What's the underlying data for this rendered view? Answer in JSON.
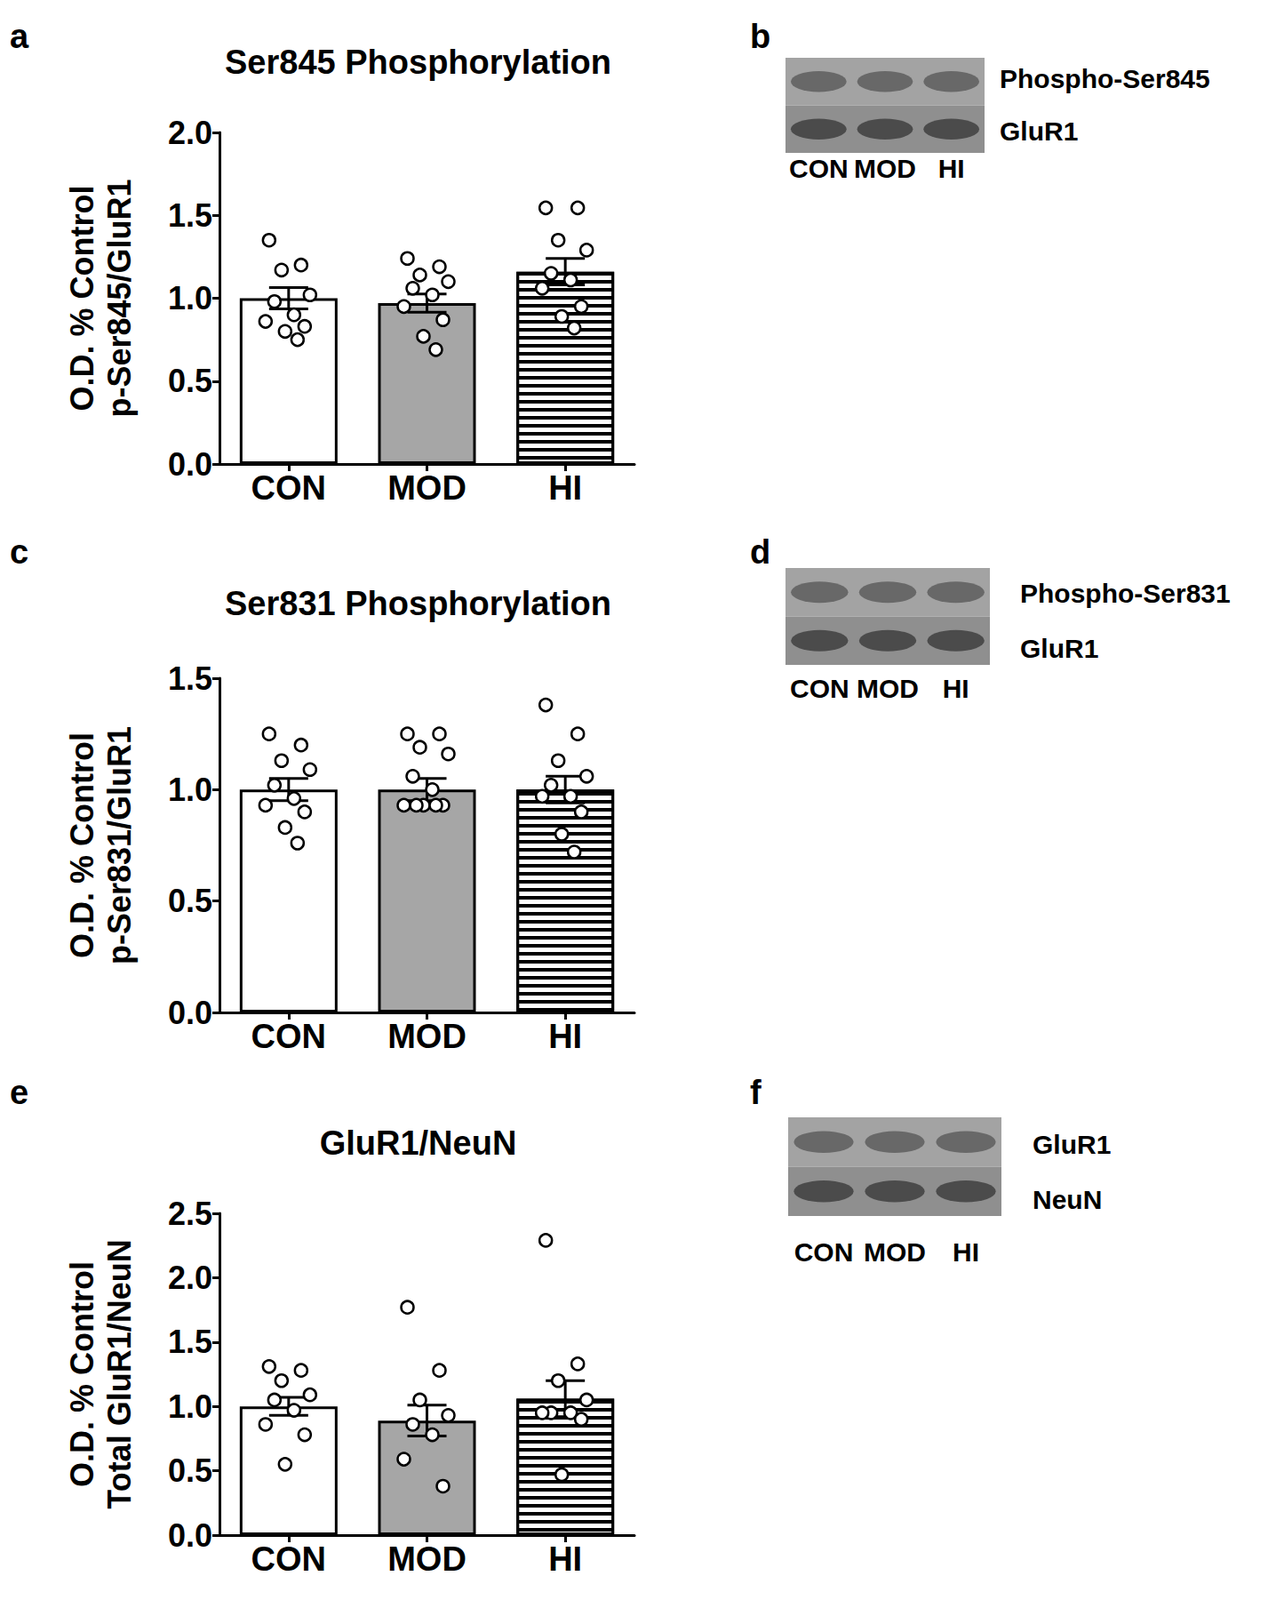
{
  "chart_data": [
    {
      "type": "bar",
      "panel": "a",
      "title": "Ser845 Phosphorylation",
      "y_label": [
        "O.D. % Control",
        "p-Ser845/GluR1"
      ],
      "categories": [
        "CON",
        "MOD",
        "HI"
      ],
      "values": [
        1.0,
        0.97,
        1.16
      ],
      "errors": [
        0.065,
        0.055,
        0.08
      ],
      "points": [
        [
          1.35,
          1.2,
          1.17,
          1.02,
          0.98,
          0.9,
          0.86,
          0.83,
          0.8,
          0.75
        ],
        [
          1.24,
          1.19,
          1.14,
          1.1,
          1.06,
          1.02,
          0.95,
          0.87,
          0.77,
          0.69
        ],
        [
          1.545,
          1.545,
          1.35,
          1.29,
          1.15,
          1.11,
          1.06,
          0.95,
          0.89,
          0.82
        ]
      ],
      "colors": [
        "#ffffff",
        "#a6a6a6",
        "#ffffff"
      ],
      "ylim": [
        0,
        2
      ],
      "yticks": [
        {
          "value": 0,
          "label": "0.0"
        },
        {
          "value": 0.5,
          "label": "0.5"
        },
        {
          "value": 1,
          "label": "1.0"
        },
        {
          "value": 1.5,
          "label": "1.5"
        },
        {
          "value": 2,
          "label": "2.0"
        }
      ],
      "grid": false
    },
    {
      "type": "bar",
      "panel": "c",
      "title": "Ser831 Phosphorylation",
      "y_label": [
        "O.D. % Control",
        "p-Ser831/GluR1"
      ],
      "categories": [
        "CON",
        "MOD",
        "HI"
      ],
      "values": [
        1.0,
        1.0,
        1.0
      ],
      "errors": [
        0.05,
        0.05,
        0.06
      ],
      "points": [
        [
          1.25,
          1.2,
          1.13,
          1.09,
          1.02,
          0.96,
          0.93,
          0.9,
          0.83,
          0.76
        ],
        [
          1.25,
          1.25,
          1.19,
          1.16,
          1.06,
          1.0,
          0.93,
          0.93,
          0.93,
          0.93,
          0.93
        ],
        [
          1.38,
          1.25,
          1.13,
          1.06,
          1.02,
          0.97,
          0.97,
          0.9,
          0.8,
          0.72
        ]
      ],
      "colors": [
        "#ffffff",
        "#a6a6a6",
        "#ffffff"
      ],
      "ylim": [
        0,
        1.5
      ],
      "yticks": [
        {
          "value": 0,
          "label": "0.0"
        },
        {
          "value": 0.5,
          "label": "0.5"
        },
        {
          "value": 1,
          "label": "1.0"
        },
        {
          "value": 1.5,
          "label": "1.5"
        }
      ],
      "grid": false
    },
    {
      "type": "bar",
      "panel": "e",
      "title": "GluR1/NeuN",
      "y_label": [
        "O.D. % Control",
        "Total GluR1/NeuN"
      ],
      "categories": [
        "CON",
        "MOD",
        "HI"
      ],
      "values": [
        1.0,
        0.89,
        1.06
      ],
      "errors": [
        0.07,
        0.12,
        0.14
      ],
      "points": [
        [
          1.31,
          1.28,
          1.2,
          1.09,
          1.05,
          0.97,
          0.86,
          0.78,
          0.55
        ],
        [
          1.77,
          1.28,
          1.05,
          0.93,
          0.86,
          0.78,
          0.59,
          0.38
        ],
        [
          2.29,
          1.33,
          1.2,
          1.05,
          0.95,
          0.95,
          0.95,
          0.9,
          0.47
        ]
      ],
      "colors": [
        "#ffffff",
        "#a6a6a6",
        "#ffffff"
      ],
      "ylim": [
        0,
        2.5
      ],
      "yticks": [
        {
          "value": 0,
          "label": "0.0"
        },
        {
          "value": 0.5,
          "label": "0.5"
        },
        {
          "value": 1,
          "label": "1.0"
        },
        {
          "value": 1.5,
          "label": "1.5"
        },
        {
          "value": 2,
          "label": "2.0"
        },
        {
          "value": 2.5,
          "label": "2.5"
        }
      ],
      "grid": false
    }
  ],
  "blots": [
    {
      "panel": "b",
      "rows": [
        "Phospho-Ser845",
        "GluR1"
      ],
      "lanes": [
        "CON",
        "MOD",
        "HI"
      ]
    },
    {
      "panel": "d",
      "rows": [
        "Phospho-Ser831",
        "GluR1"
      ],
      "lanes": [
        "CON",
        "MOD",
        "HI"
      ]
    },
    {
      "panel": "f",
      "rows": [
        "GluR1",
        "NeuN"
      ],
      "lanes": [
        "CON",
        "MOD",
        "HI"
      ]
    }
  ]
}
